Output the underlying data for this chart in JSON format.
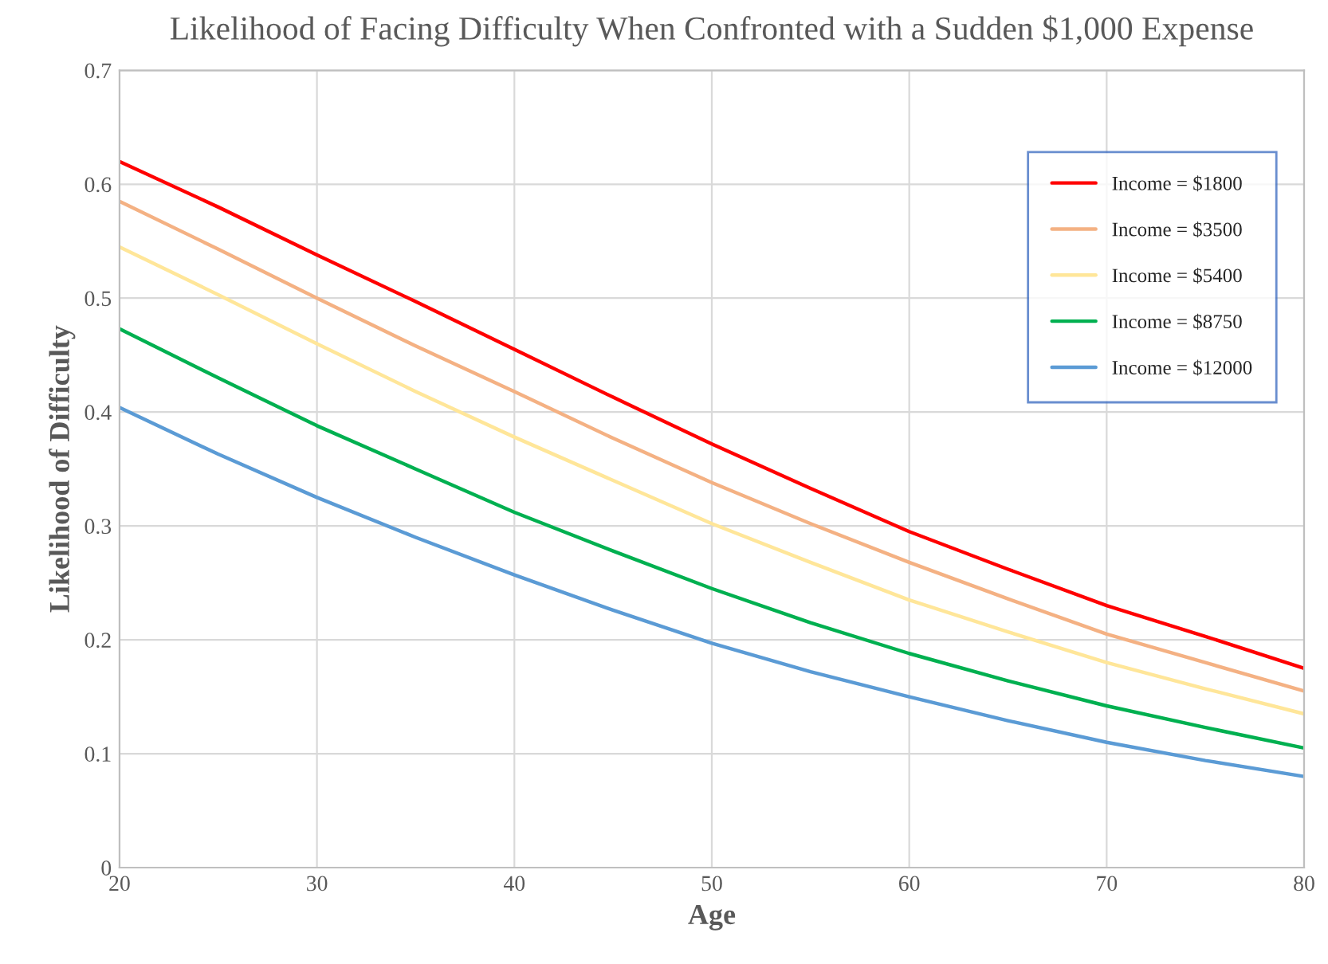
{
  "chart_data": {
    "type": "line",
    "title": "Likelihood of Facing Difficulty When Confronted with a Sudden $1,000 Expense",
    "xlabel": "Age",
    "ylabel": "Likelihood of Difficulty",
    "x": [
      20,
      25,
      30,
      35,
      40,
      45,
      50,
      55,
      60,
      65,
      70,
      75,
      80
    ],
    "series": [
      {
        "name": "Income = $1800",
        "color": "#ff0000",
        "values": [
          0.62,
          0.58,
          0.538,
          0.497,
          0.455,
          0.413,
          0.372,
          0.333,
          0.295,
          0.262,
          0.23,
          0.203,
          0.175
        ]
      },
      {
        "name": "Income = $3500",
        "color": "#f4b183",
        "values": [
          0.585,
          0.543,
          0.5,
          0.458,
          0.418,
          0.377,
          0.338,
          0.302,
          0.268,
          0.236,
          0.205,
          0.18,
          0.155
        ]
      },
      {
        "name": "Income = $5400",
        "color": "#ffe699",
        "values": [
          0.545,
          0.503,
          0.46,
          0.418,
          0.378,
          0.34,
          0.302,
          0.268,
          0.235,
          0.207,
          0.18,
          0.157,
          0.135
        ]
      },
      {
        "name": "Income = $8750",
        "color": "#00b050",
        "values": [
          0.473,
          0.43,
          0.388,
          0.35,
          0.312,
          0.278,
          0.245,
          0.215,
          0.188,
          0.164,
          0.142,
          0.123,
          0.105
        ]
      },
      {
        "name": "Income = $12000",
        "color": "#5b9bd5",
        "values": [
          0.404,
          0.363,
          0.325,
          0.29,
          0.257,
          0.226,
          0.197,
          0.172,
          0.15,
          0.129,
          0.11,
          0.094,
          0.08
        ]
      }
    ],
    "xlim": [
      20,
      80
    ],
    "xticks": [
      20,
      30,
      40,
      50,
      60,
      70,
      80
    ],
    "ylim": [
      0,
      0.7
    ],
    "yticks": [
      0,
      0.1,
      0.2,
      0.3,
      0.4,
      0.5,
      0.6,
      0.7
    ],
    "grid": true,
    "legend": "top right",
    "marker": "none",
    "line_style": "solid"
  }
}
